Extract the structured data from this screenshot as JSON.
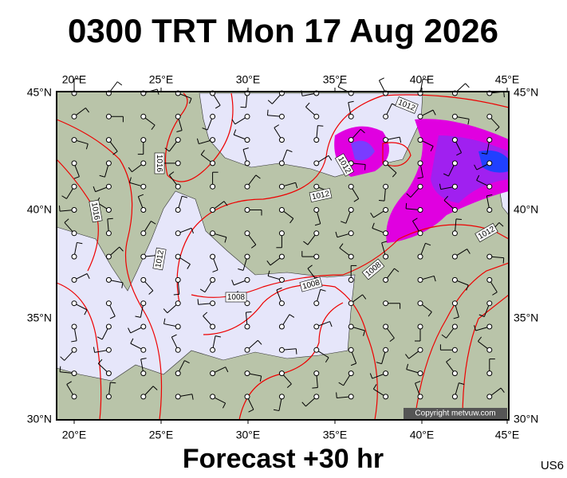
{
  "title": "0300 TRT Mon 17 Aug 2026",
  "lon_labels": [
    "20°E",
    "25°E",
    "30°E",
    "35°E",
    "40°E",
    "45°E"
  ],
  "lat_labels": [
    "45°N",
    "40°N",
    "35°N",
    "30°N"
  ],
  "isobar_labels": [
    "1012",
    "1012",
    "1016",
    "1016",
    "1012",
    "1012",
    "1008",
    "1008",
    "1008",
    "1012"
  ],
  "copyright": "Copyright metvuw.com",
  "footer": "Forecast +30 hr",
  "code": "US6"
}
